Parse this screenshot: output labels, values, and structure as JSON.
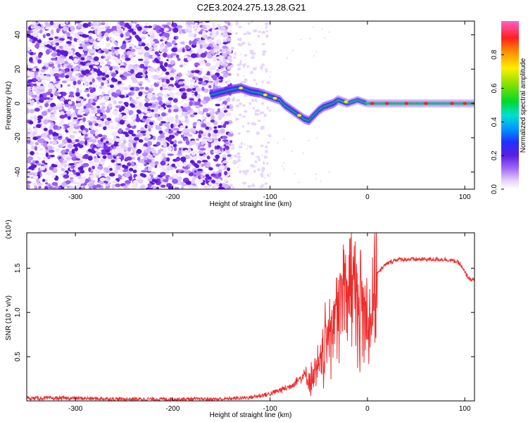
{
  "figure": {
    "title": "C2E3.2024.275.13.28.G21"
  },
  "chart_data": [
    {
      "type": "heatmap",
      "xlabel": "Height of straight line (km)",
      "ylabel": "Frequency (Hz)",
      "xlim": [
        -350,
        110
      ],
      "ylim": [
        -50,
        48
      ],
      "x_ticks": [
        -300,
        -200,
        -100,
        0,
        100
      ],
      "y_ticks": [
        -40,
        -20,
        0,
        20,
        40
      ],
      "colorbar": {
        "label": "Normalized spectral amplitude",
        "range": [
          0.0,
          1.0
        ],
        "ticks": [
          0.0,
          0.2,
          0.4,
          0.6,
          0.8
        ],
        "colors": [
          "#ffffff",
          "#d7b8ff",
          "#7a2cf0",
          "#1c2aff",
          "#00a6ff",
          "#00e0c0",
          "#00d800",
          "#a8e000",
          "#ffee00",
          "#ff9a00",
          "#ff2a00",
          "#ff1aa0",
          "#ff66cc"
        ]
      },
      "noise_region_x": [
        -350,
        -140
      ],
      "signal_ridge": [
        {
          "x": -160,
          "y": 5
        },
        {
          "x": -140,
          "y": 8
        },
        {
          "x": -130,
          "y": 9
        },
        {
          "x": -120,
          "y": 7
        },
        {
          "x": -110,
          "y": 6
        },
        {
          "x": -100,
          "y": 4
        },
        {
          "x": -90,
          "y": 2
        },
        {
          "x": -85,
          "y": -1
        },
        {
          "x": -80,
          "y": -3
        },
        {
          "x": -75,
          "y": -5
        },
        {
          "x": -70,
          "y": -7
        },
        {
          "x": -65,
          "y": -9
        },
        {
          "x": -60,
          "y": -10
        },
        {
          "x": -55,
          "y": -7
        },
        {
          "x": -50,
          "y": -4
        },
        {
          "x": -45,
          "y": -2
        },
        {
          "x": -40,
          "y": -1
        },
        {
          "x": -35,
          "y": 0
        },
        {
          "x": -30,
          "y": 2
        },
        {
          "x": -25,
          "y": 1
        },
        {
          "x": -20,
          "y": 0
        },
        {
          "x": -10,
          "y": 2
        },
        {
          "x": 0,
          "y": 0
        },
        {
          "x": 20,
          "y": 0
        },
        {
          "x": 50,
          "y": 0
        },
        {
          "x": 80,
          "y": 0
        },
        {
          "x": 110,
          "y": 0
        }
      ]
    },
    {
      "type": "line",
      "xlabel": "Height of straight line (km)",
      "ylabel": "SNR (10 * v/v)",
      "y_multiplier_label": "(x10⁴)",
      "xlim": [
        -350,
        110
      ],
      "ylim": [
        0,
        1.9
      ],
      "x_ticks": [
        -300,
        -200,
        -100,
        0,
        100
      ],
      "y_ticks": [
        0.5,
        1.0,
        1.5
      ],
      "y_tick_labels": [
        "0.5",
        "1.0",
        "1.5"
      ],
      "color": "#ee2b2b",
      "series": [
        {
          "x": [
            -350,
            -300,
            -250,
            -200,
            -150,
            -120,
            -100,
            -90,
            -80,
            -70,
            -65,
            -60,
            -55,
            -50,
            -45,
            -40,
            -35,
            -30,
            -25,
            -20,
            -15,
            -10,
            -5,
            0,
            5,
            10,
            20,
            30,
            40,
            50,
            60,
            70,
            80,
            90,
            95,
            100,
            105,
            110
          ],
          "y": [
            0.03,
            0.03,
            0.02,
            0.02,
            0.02,
            0.04,
            0.08,
            0.12,
            0.16,
            0.25,
            0.3,
            0.25,
            0.3,
            0.35,
            0.6,
            0.8,
            1.0,
            1.1,
            1.3,
            1.4,
            1.3,
            1.2,
            1.1,
            1.0,
            1.2,
            1.45,
            1.55,
            1.6,
            1.6,
            1.6,
            1.6,
            1.6,
            1.6,
            1.58,
            1.55,
            1.45,
            1.38,
            1.36
          ]
        }
      ]
    }
  ]
}
